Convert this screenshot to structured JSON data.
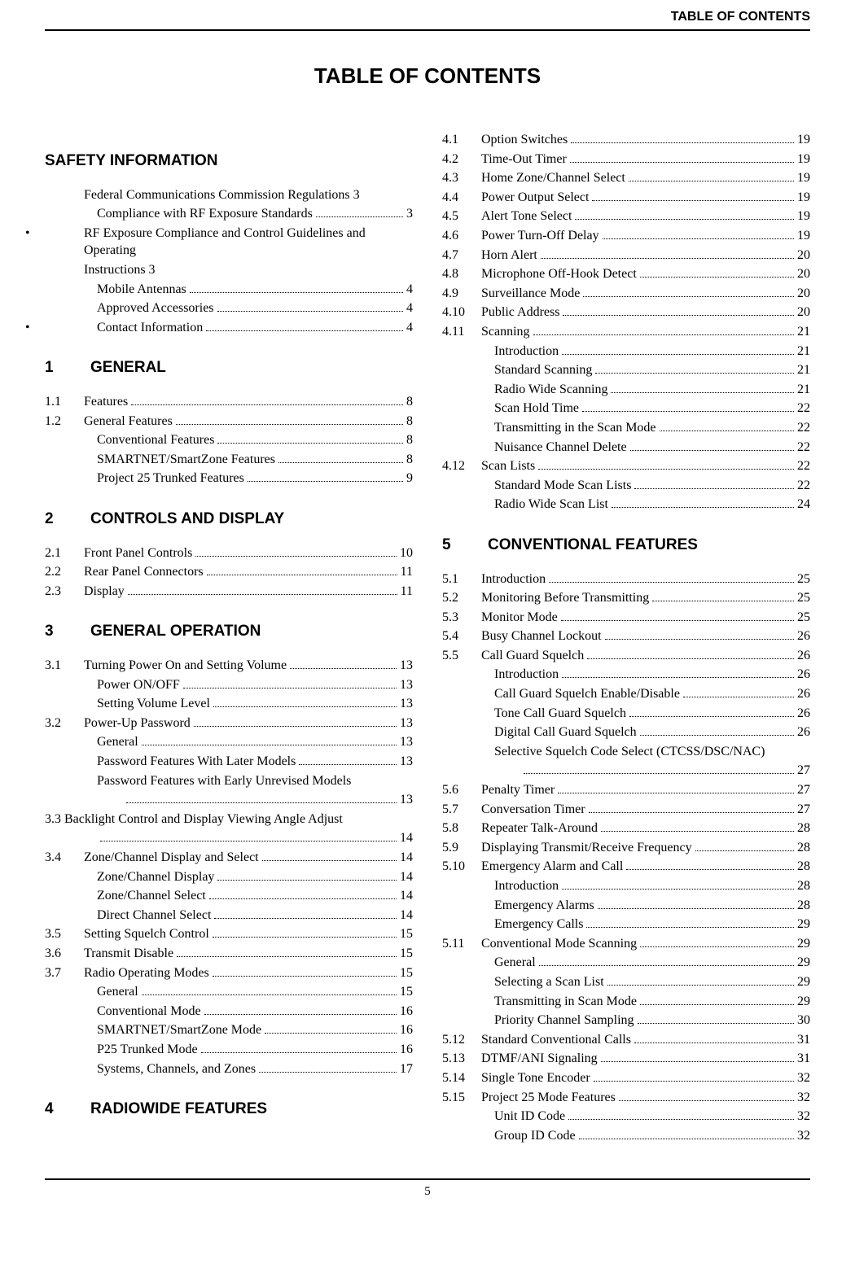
{
  "running_head": "TABLE OF CONTENTS",
  "main_title": "TABLE OF CONTENTS",
  "page_number": "5",
  "left_column": [
    {
      "kind": "section",
      "num": "",
      "label": "SAFETY INFORMATION"
    },
    {
      "kind": "block",
      "label": "Federal Communications Commission Regulations 3"
    },
    {
      "kind": "entry",
      "num": "",
      "label": "Compliance with RF Exposure Standards",
      "page": "3",
      "indent": 1
    },
    {
      "kind": "block_bullet",
      "label": "RF Exposure Compliance and Control Guidelines and Operating"
    },
    {
      "kind": "block",
      "label": "Instructions 3"
    },
    {
      "kind": "entry",
      "num": "",
      "label": "Mobile Antennas",
      "page": "4",
      "indent": 1
    },
    {
      "kind": "entry",
      "num": "",
      "label": "Approved Accessories",
      "page": "4",
      "indent": 1
    },
    {
      "kind": "entry_bullet",
      "num": "",
      "label": "Contact Information",
      "page": "4",
      "indent": 1
    },
    {
      "kind": "section",
      "num": "1",
      "label": "GENERAL"
    },
    {
      "kind": "entry",
      "num": "1.1",
      "label": "Features",
      "page": "8",
      "indent": 0
    },
    {
      "kind": "entry",
      "num": "1.2",
      "label": "General Features",
      "page": "8",
      "indent": 0
    },
    {
      "kind": "entry",
      "num": "",
      "label": "Conventional Features",
      "page": "8",
      "indent": 1
    },
    {
      "kind": "entry",
      "num": "",
      "label": "SMARTNET/SmartZone Features",
      "page": "8",
      "indent": 1
    },
    {
      "kind": "entry",
      "num": "",
      "label": "Project 25 Trunked Features",
      "page": "9",
      "indent": 1
    },
    {
      "kind": "section",
      "num": "2",
      "label": "CONTROLS AND DISPLAY"
    },
    {
      "kind": "entry",
      "num": "2.1",
      "label": "Front Panel Controls",
      "page": "10",
      "indent": 0
    },
    {
      "kind": "entry",
      "num": "2.2",
      "label": "Rear Panel Connectors",
      "page": "11",
      "indent": 0
    },
    {
      "kind": "entry",
      "num": "2.3",
      "label": "Display",
      "page": "11",
      "indent": 0
    },
    {
      "kind": "section",
      "num": "3",
      "label": "GENERAL OPERATION"
    },
    {
      "kind": "entry",
      "num": "3.1",
      "label": "Turning Power On and Setting Volume",
      "page": "13",
      "indent": 0
    },
    {
      "kind": "entry",
      "num": "",
      "label": "Power ON/OFF",
      "page": "13",
      "indent": 1
    },
    {
      "kind": "entry",
      "num": "",
      "label": "Setting Volume Level",
      "page": "13",
      "indent": 1
    },
    {
      "kind": "entry",
      "num": "3.2",
      "label": "Power-Up Password",
      "page": "13",
      "indent": 0
    },
    {
      "kind": "entry",
      "num": "",
      "label": "General",
      "page": "13",
      "indent": 1
    },
    {
      "kind": "entry",
      "num": "",
      "label": "Password Features With Later Models",
      "page": "13",
      "indent": 1
    },
    {
      "kind": "block_sub",
      "label": "Password Features with Early Unrevised Models"
    },
    {
      "kind": "entry",
      "num": "",
      "label": "",
      "page": "13",
      "indent": 2
    },
    {
      "kind": "block_l0",
      "label": "3.3    Backlight Control and Display Viewing Angle Adjust"
    },
    {
      "kind": "entry",
      "num": "",
      "label": "",
      "page": "14",
      "indent": 1,
      "dots_only": true
    },
    {
      "kind": "entry",
      "num": "3.4",
      "label": "Zone/Channel Display and Select",
      "page": "14",
      "indent": 0
    },
    {
      "kind": "entry",
      "num": "",
      "label": "Zone/Channel Display",
      "page": "14",
      "indent": 1
    },
    {
      "kind": "entry",
      "num": "",
      "label": "Zone/Channel Select",
      "page": "14",
      "indent": 1
    },
    {
      "kind": "entry",
      "num": "",
      "label": "Direct Channel Select",
      "page": "14",
      "indent": 1
    },
    {
      "kind": "entry",
      "num": "3.5",
      "label": "Setting Squelch Control",
      "page": "15",
      "indent": 0
    },
    {
      "kind": "entry",
      "num": "3.6",
      "label": "Transmit Disable",
      "page": "15",
      "indent": 0
    },
    {
      "kind": "entry",
      "num": "3.7",
      "label": "Radio Operating Modes",
      "page": "15",
      "indent": 0
    },
    {
      "kind": "entry",
      "num": "",
      "label": "General",
      "page": "15",
      "indent": 1
    },
    {
      "kind": "entry",
      "num": "",
      "label": "Conventional Mode",
      "page": "16",
      "indent": 1
    },
    {
      "kind": "entry",
      "num": "",
      "label": "SMARTNET/SmartZone Mode",
      "page": "16",
      "indent": 1
    },
    {
      "kind": "entry",
      "num": "",
      "label": "P25 Trunked Mode",
      "page": "16",
      "indent": 1
    },
    {
      "kind": "entry",
      "num": "",
      "label": "Systems, Channels, and Zones",
      "page": "17",
      "indent": 1
    },
    {
      "kind": "section",
      "num": "4",
      "label": "RADIOWIDE FEATURES"
    }
  ],
  "right_column": [
    {
      "kind": "entry",
      "num": "4.1",
      "label": "Option Switches",
      "page": "19",
      "indent": 0
    },
    {
      "kind": "entry",
      "num": "4.2",
      "label": "Time-Out Timer",
      "page": "19",
      "indent": 0
    },
    {
      "kind": "entry",
      "num": "4.3",
      "label": "Home Zone/Channel Select",
      "page": "19",
      "indent": 0
    },
    {
      "kind": "entry",
      "num": "4.4",
      "label": "Power Output Select",
      "page": "19",
      "indent": 0
    },
    {
      "kind": "entry",
      "num": "4.5",
      "label": "Alert Tone Select",
      "page": "19",
      "indent": 0
    },
    {
      "kind": "entry",
      "num": "4.6",
      "label": "Power Turn-Off Delay",
      "page": "19",
      "indent": 0
    },
    {
      "kind": "entry",
      "num": "4.7",
      "label": "Horn Alert",
      "page": "20",
      "indent": 0
    },
    {
      "kind": "entry",
      "num": "4.8",
      "label": "Microphone Off-Hook Detect",
      "page": "20",
      "indent": 0
    },
    {
      "kind": "entry",
      "num": "4.9",
      "label": "Surveillance Mode",
      "page": "20",
      "indent": 0
    },
    {
      "kind": "entry",
      "num": "4.10",
      "label": "Public Address",
      "page": "20",
      "indent": 0
    },
    {
      "kind": "entry",
      "num": "4.11",
      "label": "Scanning",
      "page": "21",
      "indent": 0
    },
    {
      "kind": "entry",
      "num": "",
      "label": "Introduction",
      "page": "21",
      "indent": 1
    },
    {
      "kind": "entry",
      "num": "",
      "label": "Standard Scanning",
      "page": "21",
      "indent": 1
    },
    {
      "kind": "entry",
      "num": "",
      "label": "Radio Wide Scanning",
      "page": "21",
      "indent": 1
    },
    {
      "kind": "entry",
      "num": "",
      "label": "Scan Hold Time",
      "page": "22",
      "indent": 1
    },
    {
      "kind": "entry",
      "num": "",
      "label": "Transmitting in the Scan Mode",
      "page": "22",
      "indent": 1
    },
    {
      "kind": "entry",
      "num": "",
      "label": "Nuisance Channel Delete",
      "page": "22",
      "indent": 1
    },
    {
      "kind": "entry",
      "num": "4.12",
      "label": "Scan Lists",
      "page": "22",
      "indent": 0
    },
    {
      "kind": "entry",
      "num": "",
      "label": "Standard Mode Scan Lists",
      "page": "22",
      "indent": 1
    },
    {
      "kind": "entry",
      "num": "",
      "label": "Radio Wide Scan List",
      "page": "24",
      "indent": 1
    },
    {
      "kind": "section",
      "num": "5",
      "label": "CONVENTIONAL FEATURES"
    },
    {
      "kind": "entry",
      "num": "5.1",
      "label": "Introduction",
      "page": "25",
      "indent": 0
    },
    {
      "kind": "entry",
      "num": "5.2",
      "label": "Monitoring Before Transmitting",
      "page": "25",
      "indent": 0
    },
    {
      "kind": "entry",
      "num": "5.3",
      "label": "Monitor Mode",
      "page": "25",
      "indent": 0
    },
    {
      "kind": "entry",
      "num": "5.4",
      "label": "Busy Channel Lockout",
      "page": "26",
      "indent": 0
    },
    {
      "kind": "entry",
      "num": "5.5",
      "label": "Call Guard Squelch",
      "page": "26",
      "indent": 0
    },
    {
      "kind": "entry",
      "num": "",
      "label": "Introduction",
      "page": "26",
      "indent": 1
    },
    {
      "kind": "entry",
      "num": "",
      "label": "Call Guard Squelch Enable/Disable",
      "page": "26",
      "indent": 1
    },
    {
      "kind": "entry",
      "num": "",
      "label": "Tone Call Guard Squelch",
      "page": "26",
      "indent": 1
    },
    {
      "kind": "entry",
      "num": "",
      "label": "Digital Call Guard Squelch",
      "page": "26",
      "indent": 1
    },
    {
      "kind": "block_sub",
      "label": "Selective Squelch Code Select (CTCSS/DSC/NAC)"
    },
    {
      "kind": "entry",
      "num": "",
      "label": "",
      "page": "27",
      "indent": 2
    },
    {
      "kind": "entry",
      "num": "5.6",
      "label": "Penalty Timer",
      "page": "27",
      "indent": 0
    },
    {
      "kind": "entry",
      "num": "5.7",
      "label": "Conversation Timer",
      "page": "27",
      "indent": 0
    },
    {
      "kind": "entry",
      "num": "5.8",
      "label": "Repeater Talk-Around",
      "page": "28",
      "indent": 0
    },
    {
      "kind": "entry",
      "num": "5.9",
      "label": "Displaying Transmit/Receive Frequency",
      "page": "28",
      "indent": 0
    },
    {
      "kind": "entry",
      "num": "5.10",
      "label": "Emergency Alarm and Call",
      "page": "28",
      "indent": 0
    },
    {
      "kind": "entry",
      "num": "",
      "label": "Introduction",
      "page": "28",
      "indent": 1
    },
    {
      "kind": "entry",
      "num": "",
      "label": "Emergency Alarms",
      "page": "28",
      "indent": 1
    },
    {
      "kind": "entry",
      "num": "",
      "label": "Emergency Calls",
      "page": "29",
      "indent": 1
    },
    {
      "kind": "entry",
      "num": "5.11",
      "label": "Conventional Mode Scanning",
      "page": "29",
      "indent": 0
    },
    {
      "kind": "entry",
      "num": "",
      "label": "General",
      "page": "29",
      "indent": 1
    },
    {
      "kind": "entry",
      "num": "",
      "label": "Selecting a Scan List",
      "page": "29",
      "indent": 1
    },
    {
      "kind": "entry",
      "num": "",
      "label": "Transmitting in Scan Mode",
      "page": "29",
      "indent": 1
    },
    {
      "kind": "entry",
      "num": "",
      "label": "Priority Channel Sampling",
      "page": "30",
      "indent": 1
    },
    {
      "kind": "entry",
      "num": "5.12",
      "label": "Standard Conventional Calls",
      "page": "31",
      "indent": 0
    },
    {
      "kind": "entry",
      "num": "5.13",
      "label": "DTMF/ANI Signaling",
      "page": "31",
      "indent": 0
    },
    {
      "kind": "entry",
      "num": "5.14",
      "label": "Single Tone Encoder",
      "page": "32",
      "indent": 0
    },
    {
      "kind": "entry",
      "num": "5.15",
      "label": "Project 25 Mode Features",
      "page": "32",
      "indent": 0
    },
    {
      "kind": "entry",
      "num": "",
      "label": "Unit ID Code",
      "page": "32",
      "indent": 1
    },
    {
      "kind": "entry",
      "num": "",
      "label": "Group ID Code",
      "page": "32",
      "indent": 1
    }
  ]
}
